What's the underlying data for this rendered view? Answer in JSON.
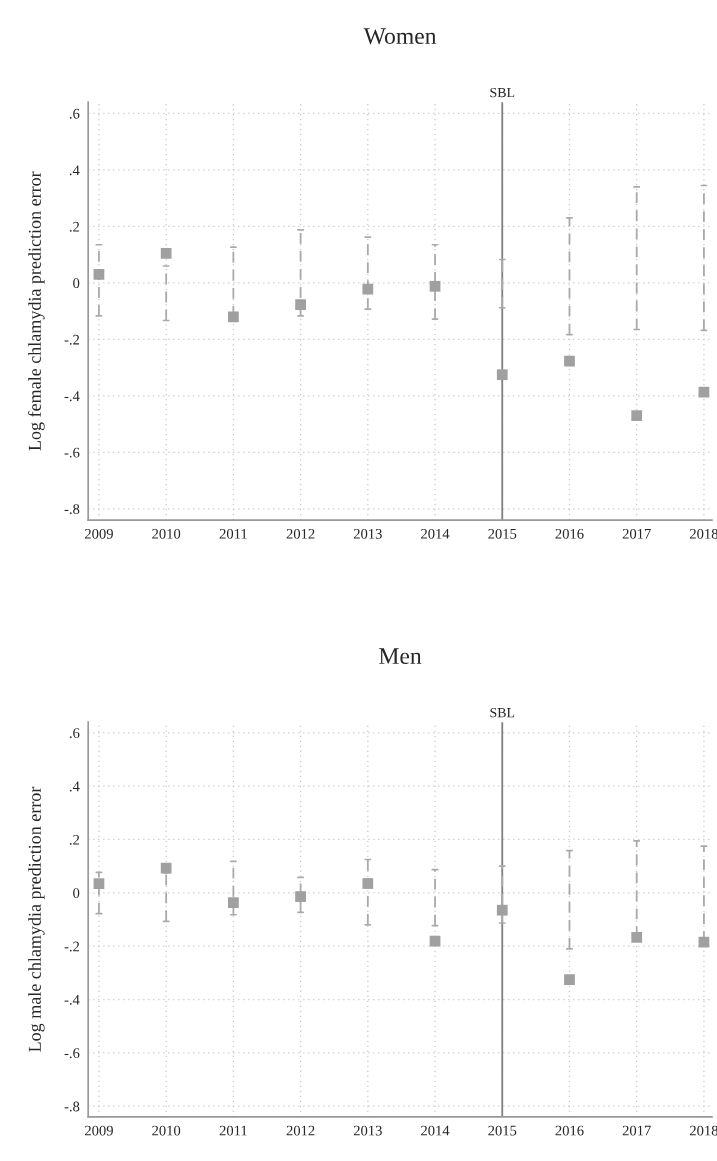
{
  "chart_data": [
    {
      "type": "scatter",
      "title": "Women",
      "ylabel": "Log female chlamydia prediction error",
      "x": [
        2009,
        2010,
        2011,
        2012,
        2013,
        2014,
        2015,
        2016,
        2017,
        2018
      ],
      "series": [
        {
          "color": "#a0a0a0",
          "values": [
            0.03,
            0.105,
            -0.12,
            -0.077,
            -0.022,
            -0.012,
            -0.325,
            -0.277,
            -0.47,
            -0.387
          ],
          "errors": [
            [
              -0.117,
              0.135
            ],
            [
              -0.133,
              0.06
            ],
            [
              -0.12,
              0.127
            ],
            [
              -0.117,
              0.188
            ],
            [
              -0.093,
              0.162
            ],
            [
              -0.128,
              0.135
            ],
            [
              -0.088,
              0.083
            ],
            [
              -0.183,
              0.23
            ],
            [
              -0.165,
              0.34
            ],
            [
              -0.168,
              0.345
            ]
          ]
        }
      ],
      "marker": "square",
      "grid": true,
      "xlim": [
        2008.84,
        2018.12
      ],
      "xticks": [
        2009,
        2010,
        2011,
        2012,
        2013,
        2014,
        2015,
        2016,
        2017,
        2018
      ],
      "ylim": [
        -0.84,
        0.64
      ],
      "yticks": [
        {
          "value": 0.6,
          "label": ".6"
        },
        {
          "value": 0.4,
          "label": ".4"
        },
        {
          "value": 0.2,
          "label": ".2"
        },
        0,
        {
          "value": -0.2,
          "label": "-.2"
        },
        {
          "value": -0.4,
          "label": "-.4"
        },
        {
          "value": -0.6,
          "label": "-.6"
        },
        {
          "value": -0.8,
          "label": "-.8"
        }
      ],
      "ref_lines": [
        {
          "axis": "x",
          "value": 2015,
          "label": "SBL",
          "color": "#808080"
        }
      ]
    },
    {
      "type": "scatter",
      "title": "Men",
      "ylabel": "Log male chlamydia prediction error",
      "x": [
        2009,
        2010,
        2011,
        2012,
        2013,
        2014,
        2015,
        2016,
        2017,
        2018
      ],
      "series": [
        {
          "color": "#a0a0a0",
          "values": [
            0.035,
            0.093,
            -0.037,
            -0.014,
            0.035,
            -0.181,
            -0.065,
            -0.325,
            -0.167,
            -0.185
          ],
          "errors": [
            [
              -0.078,
              0.077
            ],
            [
              -0.107,
              0.075
            ],
            [
              -0.082,
              0.118
            ],
            [
              -0.073,
              0.058
            ],
            [
              -0.12,
              0.125
            ],
            [
              -0.123,
              0.087
            ],
            [
              -0.113,
              0.1
            ],
            [
              -0.21,
              0.158
            ],
            [
              -0.167,
              0.195
            ],
            [
              -0.185,
              0.175
            ]
          ]
        }
      ],
      "marker": "square",
      "grid": true,
      "xlim": [
        2008.84,
        2018.12
      ],
      "xticks": [
        2009,
        2010,
        2011,
        2012,
        2013,
        2014,
        2015,
        2016,
        2017,
        2018
      ],
      "ylim": [
        -0.84,
        0.64
      ],
      "yticks": [
        {
          "value": 0.6,
          "label": ".6"
        },
        {
          "value": 0.4,
          "label": ".4"
        },
        {
          "value": 0.2,
          "label": ".2"
        },
        0,
        {
          "value": -0.2,
          "label": "-.2"
        },
        {
          "value": -0.4,
          "label": "-.4"
        },
        {
          "value": -0.6,
          "label": "-.6"
        },
        {
          "value": -0.8,
          "label": "-.8"
        }
      ],
      "ref_lines": [
        {
          "axis": "x",
          "value": 2015,
          "label": "SBL",
          "color": "#808080"
        }
      ]
    }
  ]
}
